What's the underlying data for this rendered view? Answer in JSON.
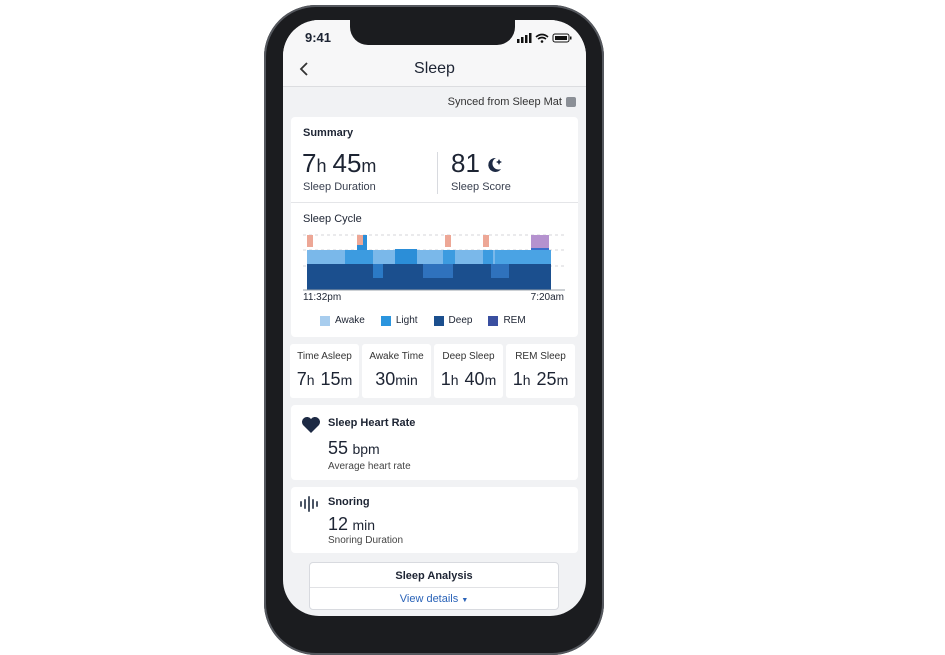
{
  "status": {
    "time": "9:41"
  },
  "header": {
    "title": "Sleep"
  },
  "sync": "Synced from Sleep Mat",
  "summary": {
    "title": "Summary",
    "duration": {
      "parts": [
        {
          "value": "7",
          "unit": "h"
        },
        {
          "value": "45",
          "unit": "m"
        }
      ],
      "label": "Sleep Duration"
    },
    "score": {
      "value": "81",
      "label": "Sleep Score"
    }
  },
  "cycle": {
    "title": "Sleep Cycle",
    "start": "11:32pm",
    "end": "7:20am",
    "legend": [
      {
        "label": "Awake",
        "color": "#a8cdee"
      },
      {
        "label": "Light",
        "color": "#2b95de"
      },
      {
        "label": "Deep",
        "color": "#1b4f8e"
      },
      {
        "label": "REM",
        "color": "#3a4fa0"
      }
    ]
  },
  "stats": [
    {
      "label": "Time Asleep",
      "parts": [
        {
          "value": "7",
          "unit": "h"
        },
        {
          "value": "15",
          "unit": "m"
        }
      ]
    },
    {
      "label": "Awake Time",
      "parts": [
        {
          "value": "30",
          "unit": "min"
        }
      ]
    },
    {
      "label": "Deep Sleep",
      "parts": [
        {
          "value": "1",
          "unit": "h"
        },
        {
          "value": "40",
          "unit": "m"
        }
      ]
    },
    {
      "label": "REM Sleep",
      "parts": [
        {
          "value": "1",
          "unit": "h"
        },
        {
          "value": "25",
          "unit": "m"
        }
      ]
    }
  ],
  "heart": {
    "title": "Sleep Heart Rate",
    "value": "55",
    "unit": "bpm",
    "label": "Average heart rate"
  },
  "snoring": {
    "title": "Snoring",
    "value": "12",
    "unit": "min",
    "label": "Snoring Duration"
  },
  "analysis": {
    "title": "Sleep Analysis",
    "link": "View details"
  }
}
